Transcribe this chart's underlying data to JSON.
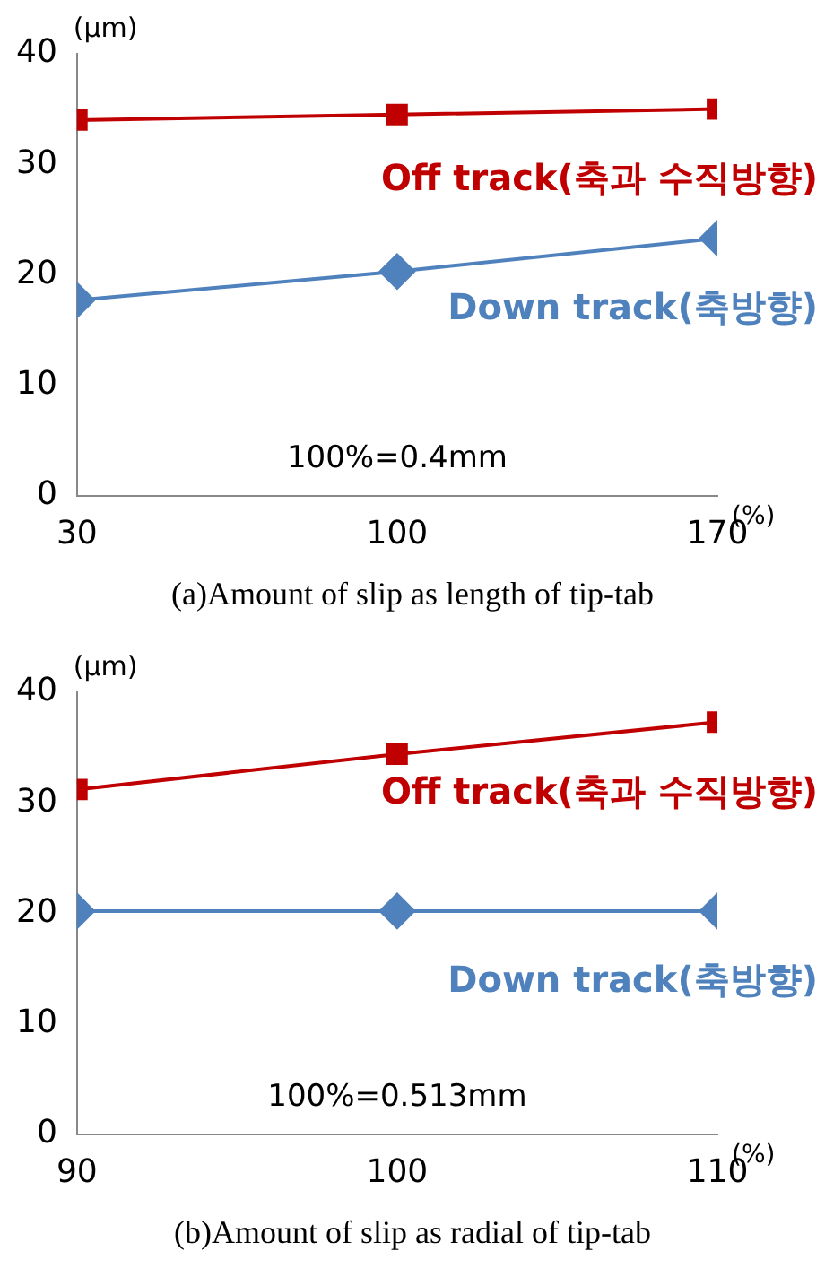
{
  "chart_data": [
    {
      "type": "line",
      "ylabel": "(μm)",
      "xlabel": "(%)",
      "x": [
        30,
        100,
        170
      ],
      "xlim": [
        30,
        170
      ],
      "xticks": [
        30,
        100,
        170
      ],
      "ylim": [
        0,
        40
      ],
      "yticks": [
        0,
        10,
        20,
        30,
        40
      ],
      "grid": false,
      "legend": false,
      "series": [
        {
          "name": "Off track(축과 수직방향)",
          "color": "#c00000",
          "marker": "square",
          "values": [
            34,
            34.5,
            35
          ]
        },
        {
          "name": "Down track(축방향)",
          "color": "#4f81bd",
          "marker": "diamond",
          "values": [
            17.7,
            20.3,
            23.3
          ]
        }
      ],
      "annotations": [
        "100%=0.4mm",
        "(a)Amount of slip as length of tip-tab"
      ]
    },
    {
      "type": "line",
      "ylabel": "(μm)",
      "xlabel": "(%)",
      "x": [
        90,
        100,
        110
      ],
      "xlim": [
        90,
        110
      ],
      "xticks": [
        90,
        100,
        110
      ],
      "ylim": [
        0,
        40
      ],
      "yticks": [
        0,
        10,
        20,
        30,
        40
      ],
      "grid": false,
      "legend": false,
      "series": [
        {
          "name": "Off track(축과 수직방향)",
          "color": "#c00000",
          "marker": "square",
          "values": [
            31.2,
            34.4,
            37.3
          ]
        },
        {
          "name": "Down track(축방향)",
          "color": "#4f81bd",
          "marker": "diamond",
          "values": [
            20.2,
            20.2,
            20.2
          ]
        }
      ],
      "annotations": [
        "100%=0.513mm",
        "(b)Amount of slip as radial of tip-tab"
      ]
    }
  ]
}
